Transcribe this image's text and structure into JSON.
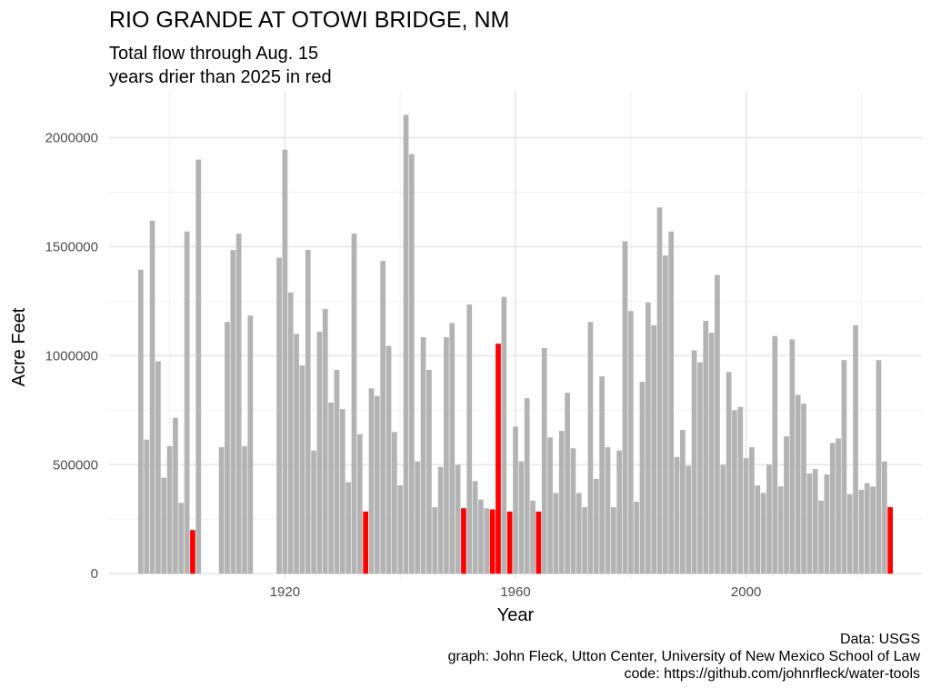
{
  "chart_data": {
    "type": "bar",
    "title": "RIO GRANDE AT OTOWI BRIDGE, NM",
    "subtitle": [
      "Total flow through Aug. 15",
      "years drier than 2025 in red"
    ],
    "xlabel": "Year",
    "ylabel": "Acre Feet",
    "xticks": [
      1920,
      1960,
      2000
    ],
    "yticks": [
      "0",
      "500000",
      "1000000",
      "1500000",
      "2000000"
    ],
    "xlim": [
      1889.5,
      2030.5
    ],
    "ylim": [
      -20000,
      2215000
    ],
    "grid": true,
    "colors": {
      "normal": "#b3b3b3",
      "drier": "#ff0000",
      "grid_major": "#e6e6e6",
      "grid_minor": "#f2f2f2"
    },
    "x": [
      1895,
      1896,
      1897,
      1898,
      1899,
      1900,
      1901,
      1902,
      1903,
      1904,
      1905,
      1909,
      1910,
      1911,
      1912,
      1913,
      1914,
      1919,
      1920,
      1921,
      1922,
      1923,
      1924,
      1925,
      1926,
      1927,
      1928,
      1929,
      1930,
      1931,
      1932,
      1933,
      1934,
      1935,
      1936,
      1937,
      1938,
      1939,
      1940,
      1941,
      1942,
      1943,
      1944,
      1945,
      1946,
      1947,
      1948,
      1949,
      1950,
      1951,
      1952,
      1953,
      1954,
      1955,
      1956,
      1957,
      1958,
      1959,
      1960,
      1961,
      1962,
      1963,
      1964,
      1965,
      1966,
      1967,
      1968,
      1969,
      1970,
      1971,
      1972,
      1973,
      1974,
      1975,
      1976,
      1977,
      1978,
      1979,
      1980,
      1981,
      1982,
      1983,
      1984,
      1985,
      1986,
      1987,
      1988,
      1989,
      1990,
      1991,
      1992,
      1993,
      1994,
      1995,
      1996,
      1997,
      1998,
      1999,
      2000,
      2001,
      2002,
      2003,
      2004,
      2005,
      2006,
      2007,
      2008,
      2009,
      2010,
      2011,
      2012,
      2013,
      2014,
      2015,
      2016,
      2017,
      2018,
      2019,
      2020,
      2021,
      2022,
      2023,
      2024,
      2025
    ],
    "values": [
      1395000,
      615000,
      1620000,
      975000,
      440000,
      585000,
      715000,
      325000,
      1570000,
      200000,
      1900000,
      580000,
      1155000,
      1485000,
      1560000,
      585000,
      1185000,
      1450000,
      1945000,
      1290000,
      1100000,
      955000,
      1485000,
      565000,
      1110000,
      1215000,
      785000,
      935000,
      755000,
      420000,
      1560000,
      640000,
      285000,
      850000,
      815000,
      1435000,
      1045000,
      650000,
      405000,
      2105000,
      1925000,
      515000,
      1085000,
      935000,
      305000,
      490000,
      1085000,
      1150000,
      500000,
      300000,
      1235000,
      425000,
      340000,
      300000,
      295000,
      1055000,
      1270000,
      285000,
      675000,
      515000,
      805000,
      335000,
      285000,
      1035000,
      625000,
      370000,
      655000,
      830000,
      575000,
      370000,
      305000,
      1155000,
      435000,
      905000,
      580000,
      305000,
      565000,
      1525000,
      1205000,
      330000,
      880000,
      1245000,
      1140000,
      1680000,
      1460000,
      1570000,
      535000,
      660000,
      495000,
      1025000,
      970000,
      1160000,
      1105000,
      1370000,
      500000,
      925000,
      750000,
      765000,
      530000,
      580000,
      405000,
      370000,
      500000,
      1090000,
      400000,
      630000,
      1075000,
      820000,
      780000,
      460000,
      480000,
      335000,
      455000,
      600000,
      620000,
      980000,
      365000,
      1140000,
      385000,
      415000,
      400000,
      980000,
      515000,
      305000
    ],
    "drier_years": [
      1904,
      1934,
      1951,
      1956,
      1957,
      1959,
      1964,
      2025
    ]
  },
  "caption": {
    "lines": [
      "Data: USGS",
      "graph: John Fleck, Utton Center, University of New Mexico School of Law",
      "code: https://github.com/johnrfleck/water-tools"
    ]
  }
}
